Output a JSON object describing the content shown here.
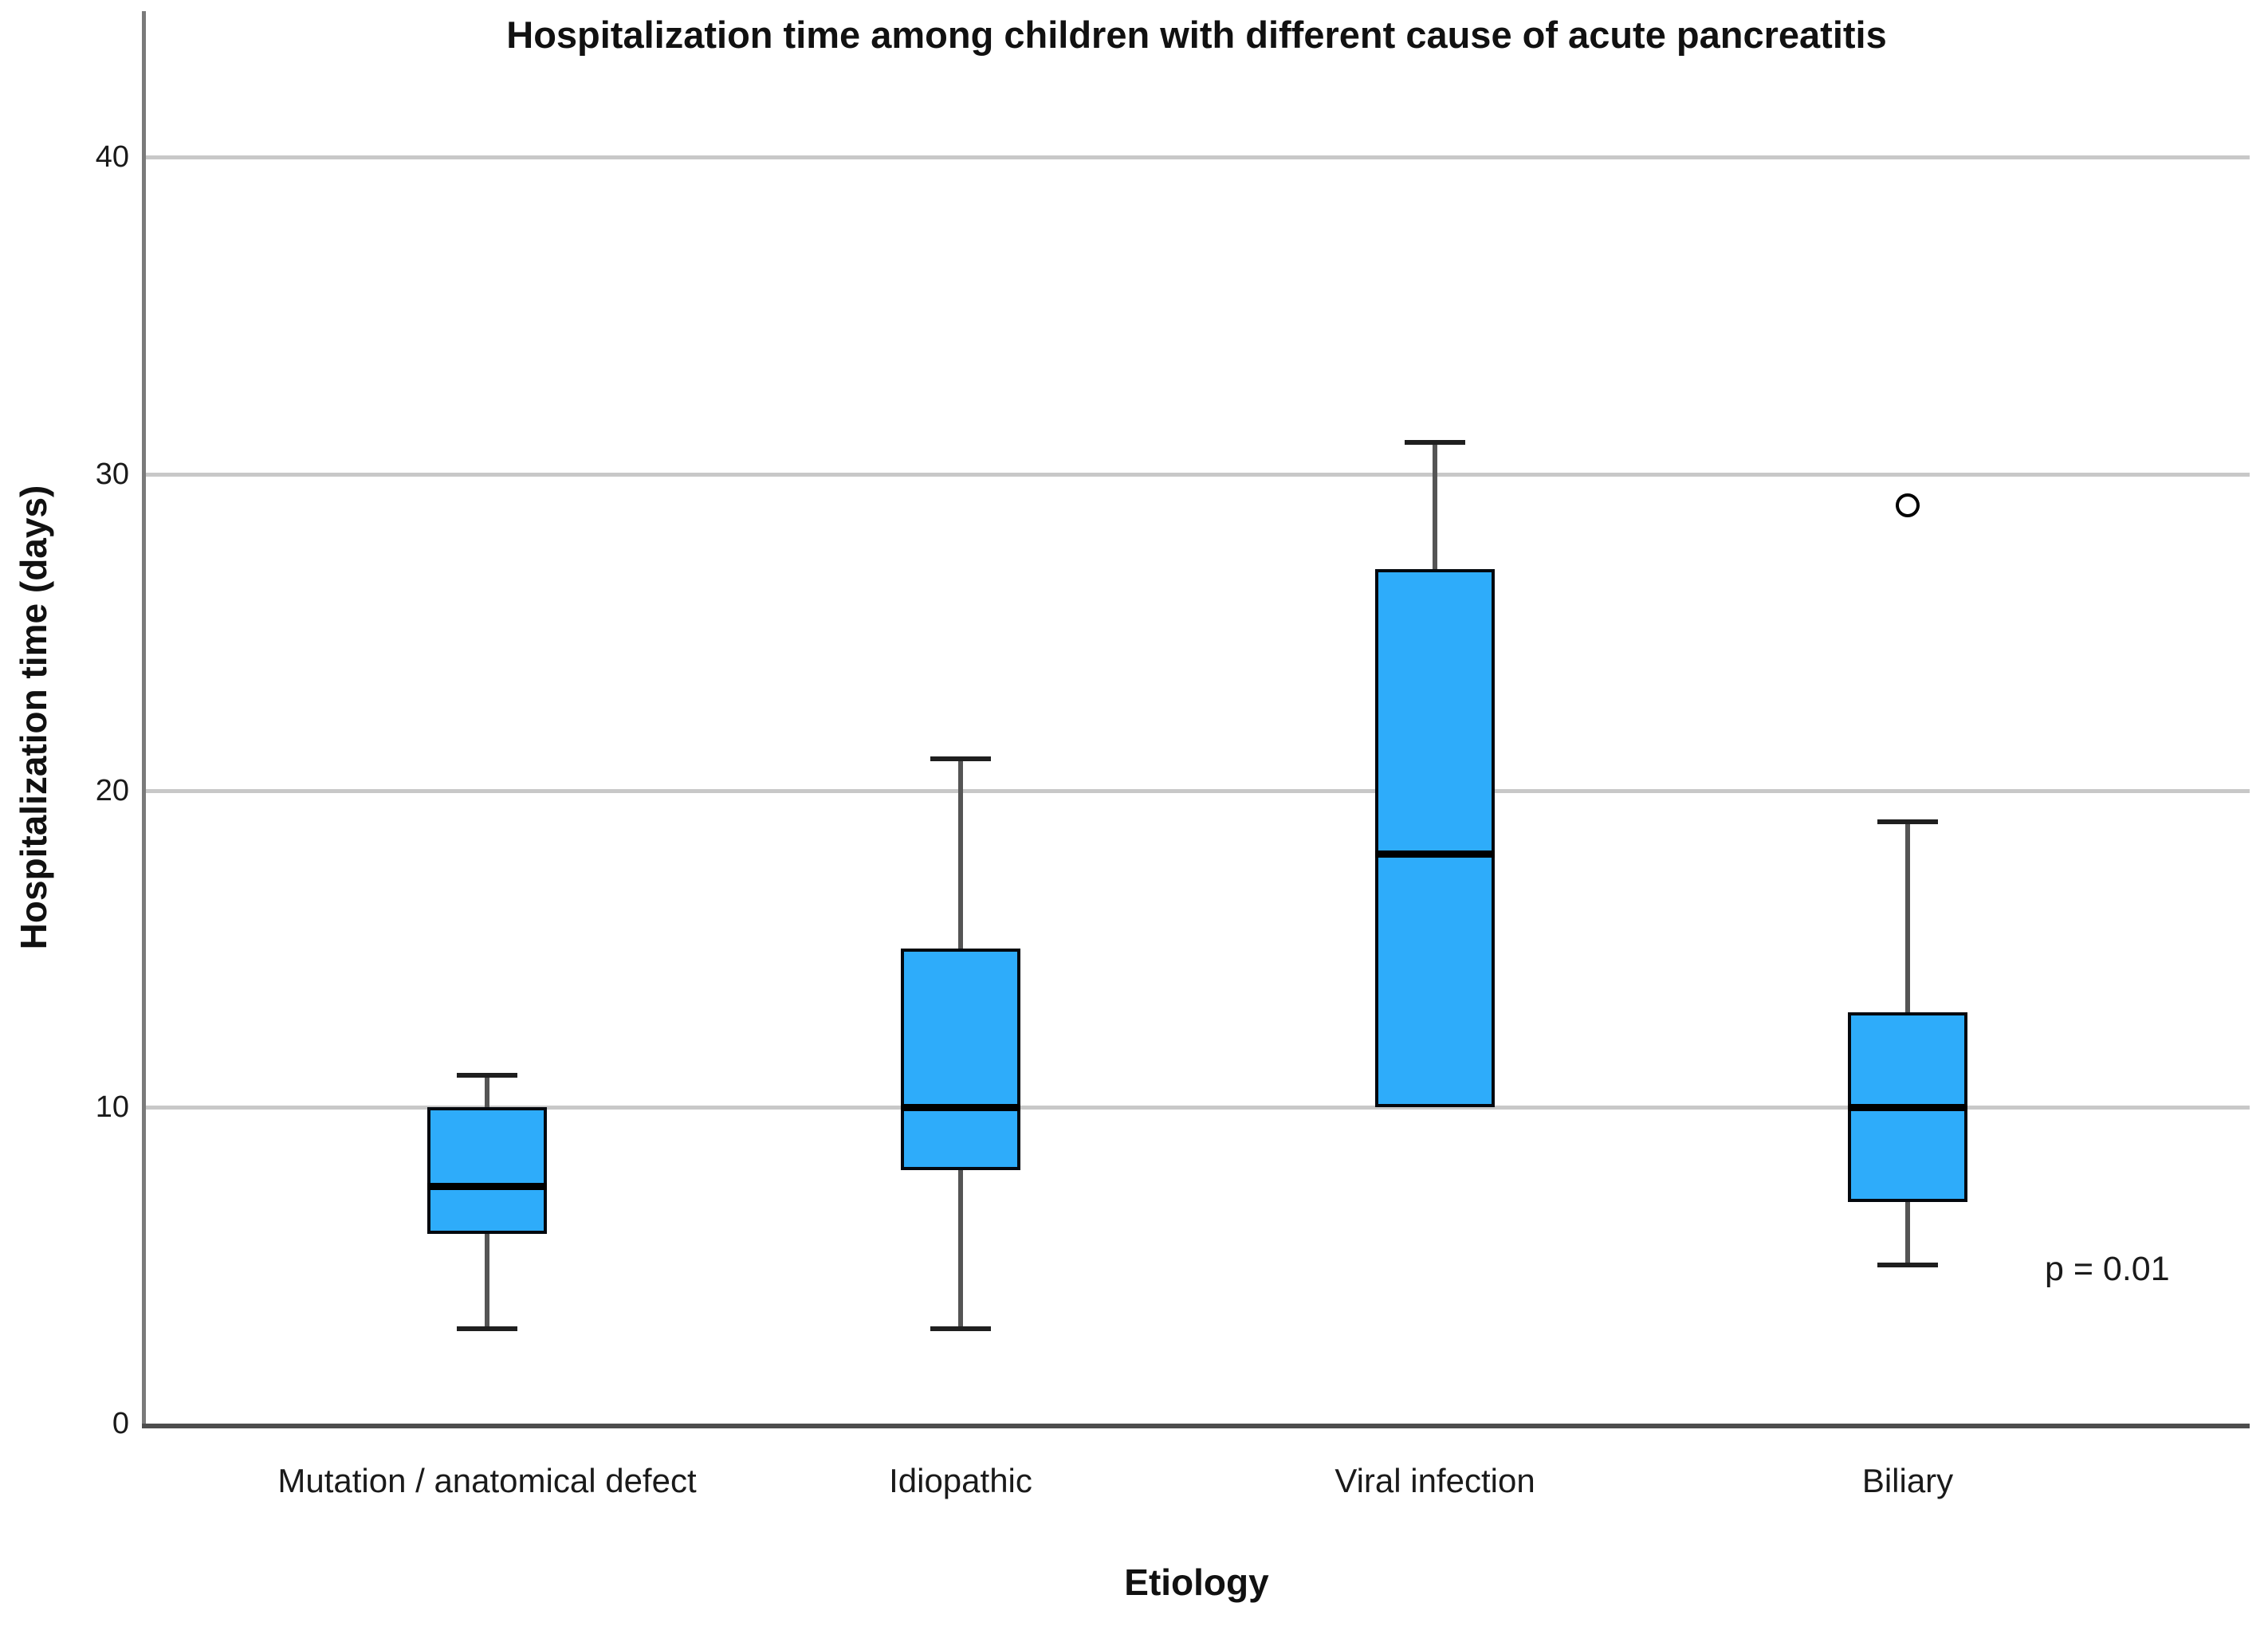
{
  "chart_data": {
    "type": "boxplot",
    "title": "Hospitalization time among children with different cause of acute pancreatitis",
    "xlabel": "Etiology",
    "ylabel": "Hospitalization time (days)",
    "annotation": "p = 0.01",
    "ylim": [
      0,
      44.6
    ],
    "yticks": [
      0,
      10,
      20,
      30,
      40
    ],
    "grid": "horizontal-gridlines-only",
    "legend": "none",
    "categories": [
      "Mutation / anatomical defect",
      "Idiopathic",
      "Viral infection",
      "Biliary"
    ],
    "boxes": [
      {
        "category": "Mutation / anatomical defect",
        "whisker_low": 3,
        "q1": 6,
        "median": 7.5,
        "q3": 10,
        "whisker_high": 11,
        "outliers": []
      },
      {
        "category": "Idiopathic",
        "whisker_low": 3,
        "q1": 8,
        "median": 10,
        "q3": 15,
        "whisker_high": 21,
        "outliers": []
      },
      {
        "category": "Viral infection",
        "whisker_low": 10,
        "q1": 10,
        "median": 18,
        "q3": 27,
        "whisker_high": 31,
        "outliers": []
      },
      {
        "category": "Biliary",
        "whisker_low": 5,
        "q1": 7,
        "median": 10,
        "q3": 13,
        "whisker_high": 19,
        "outliers": [
          29
        ]
      }
    ],
    "colors": {
      "box_fill": "#2EACFA",
      "box_border": "#04080e",
      "median": "#000000",
      "whisker_stem": "#555555",
      "whisker_cap": "#1f1f1f",
      "gridline": "#c8c8c8",
      "y_axis": "#7a7a7a",
      "x_axis": "#4d4d4d",
      "text": "#111111"
    }
  }
}
